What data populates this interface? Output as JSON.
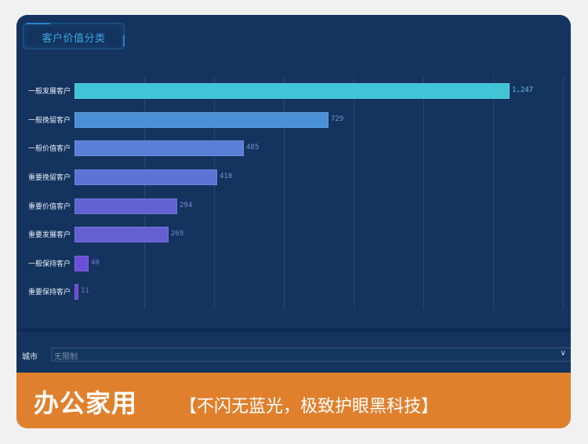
{
  "panel": {
    "title": "客户价值分类"
  },
  "chart_data": {
    "type": "bar",
    "orientation": "horizontal",
    "title": "客户价值分类",
    "categories": [
      "一般发展客户",
      "一般挽留客户",
      "一般价值客户",
      "重要挽留客户",
      "重要价值客户",
      "重要发展客户",
      "一般保持客户",
      "重要保持客户"
    ],
    "values": [
      1247,
      729,
      485,
      410,
      294,
      269,
      40,
      11
    ],
    "value_labels": [
      "1,247",
      "729",
      "485",
      "410",
      "294",
      "269",
      "40",
      "11"
    ],
    "colors": [
      "#40c4d6",
      "#4a90d6",
      "#5a7fd8",
      "#5f72d6",
      "#6262d4",
      "#6560d2",
      "#6b4fd8",
      "#6a48d6"
    ],
    "label_colors": [
      "#5fc4e6",
      "#6f9ad8",
      "#7d8fd8",
      "#7d8ad6",
      "#7e80d4",
      "#807ed2",
      "#8470d8",
      "#8068d2"
    ],
    "xlim": [
      0,
      1400
    ],
    "gridlines": 7,
    "grid": true,
    "xlabel": "",
    "ylabel": "",
    "legend": null
  },
  "filter": {
    "label": "城市",
    "value": "无限制"
  },
  "banner": {
    "main": "办公家用",
    "sub": "【不闪无蓝光，极致护眼黑科技】"
  }
}
